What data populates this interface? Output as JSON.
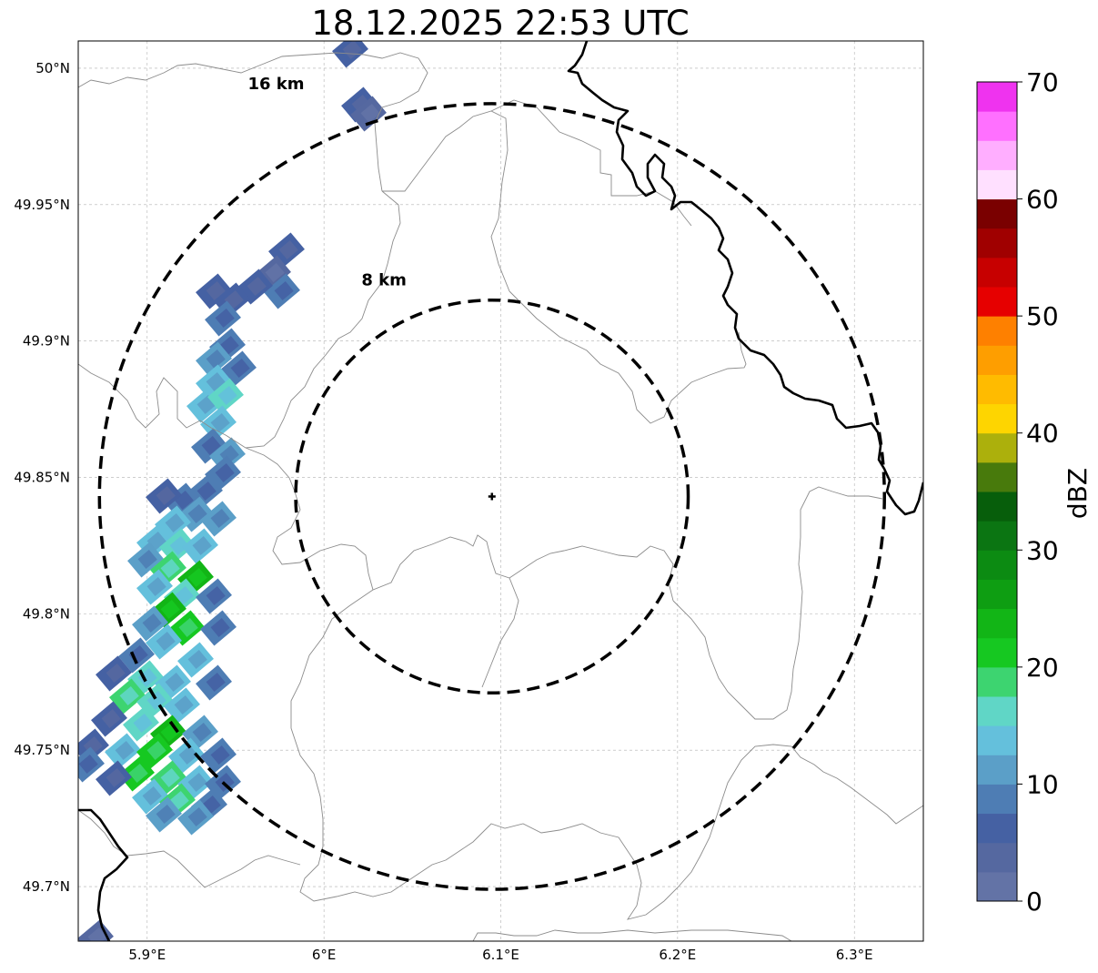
{
  "title": "18.12.2025 22:53 UTC",
  "map": {
    "lon_range": [
      5.861,
      6.339
    ],
    "lat_range": [
      49.68,
      50.01
    ],
    "x_ticks": [
      {
        "value": 5.9,
        "label": "5.9°E"
      },
      {
        "value": 6.0,
        "label": "6°E"
      },
      {
        "value": 6.1,
        "label": "6.1°E"
      },
      {
        "value": 6.2,
        "label": "6.2°E"
      },
      {
        "value": 6.3,
        "label": "6.3°E"
      }
    ],
    "y_ticks": [
      {
        "value": 50.0,
        "label": "50°N"
      },
      {
        "value": 49.95,
        "label": "49.95°N"
      },
      {
        "value": 49.9,
        "label": "49.9°N"
      },
      {
        "value": 49.85,
        "label": "49.85°N"
      },
      {
        "value": 49.8,
        "label": "49.8°N"
      },
      {
        "value": 49.75,
        "label": "49.75°N"
      },
      {
        "value": 49.7,
        "label": "49.7°N"
      }
    ],
    "gridlines": true,
    "radar_site": {
      "lon": 6.095,
      "lat": 49.843,
      "marker": "plus-icon"
    },
    "range_rings": [
      {
        "radius_km": 8,
        "label": "8 km",
        "lat_span": 0.072,
        "lon_span": 0.111
      },
      {
        "radius_km": 16,
        "label": "16 km",
        "lat_span": 0.144,
        "lon_span": 0.222
      }
    ],
    "colors": {
      "border": "#000000",
      "boundaries": "#8c8c8c",
      "grid": "#b0b0b0",
      "rings": "#000000"
    }
  },
  "colorbar": {
    "unit": "dBZ",
    "min": 0,
    "max": 70,
    "tick_values": [
      0,
      10,
      20,
      30,
      40,
      50,
      60,
      70
    ],
    "tick_labels": [
      "0",
      "10",
      "20",
      "30",
      "40",
      "50",
      "60",
      "70"
    ],
    "bins": [
      "#6373a6",
      "#5568a0",
      "#4561a3",
      "#4e7db4",
      "#5b9fc8",
      "#64c0dc",
      "#60d6c6",
      "#3dd470",
      "#16c821",
      "#12b516",
      "#0e9e12",
      "#0c8b12",
      "#0b7512",
      "#075e0b",
      "#487a0c",
      "#acb00c",
      "#fed500",
      "#ffbb00",
      "#fe9e00",
      "#fe8000",
      "#e60000",
      "#c70000",
      "#a00000",
      "#7a0000",
      "#ffe0ff",
      "#ffaeff",
      "#ff70ff",
      "#ef33ef"
    ]
  },
  "legend_values": {
    "echo_cells": "reflectivity cells (dBZ) west of radar"
  }
}
